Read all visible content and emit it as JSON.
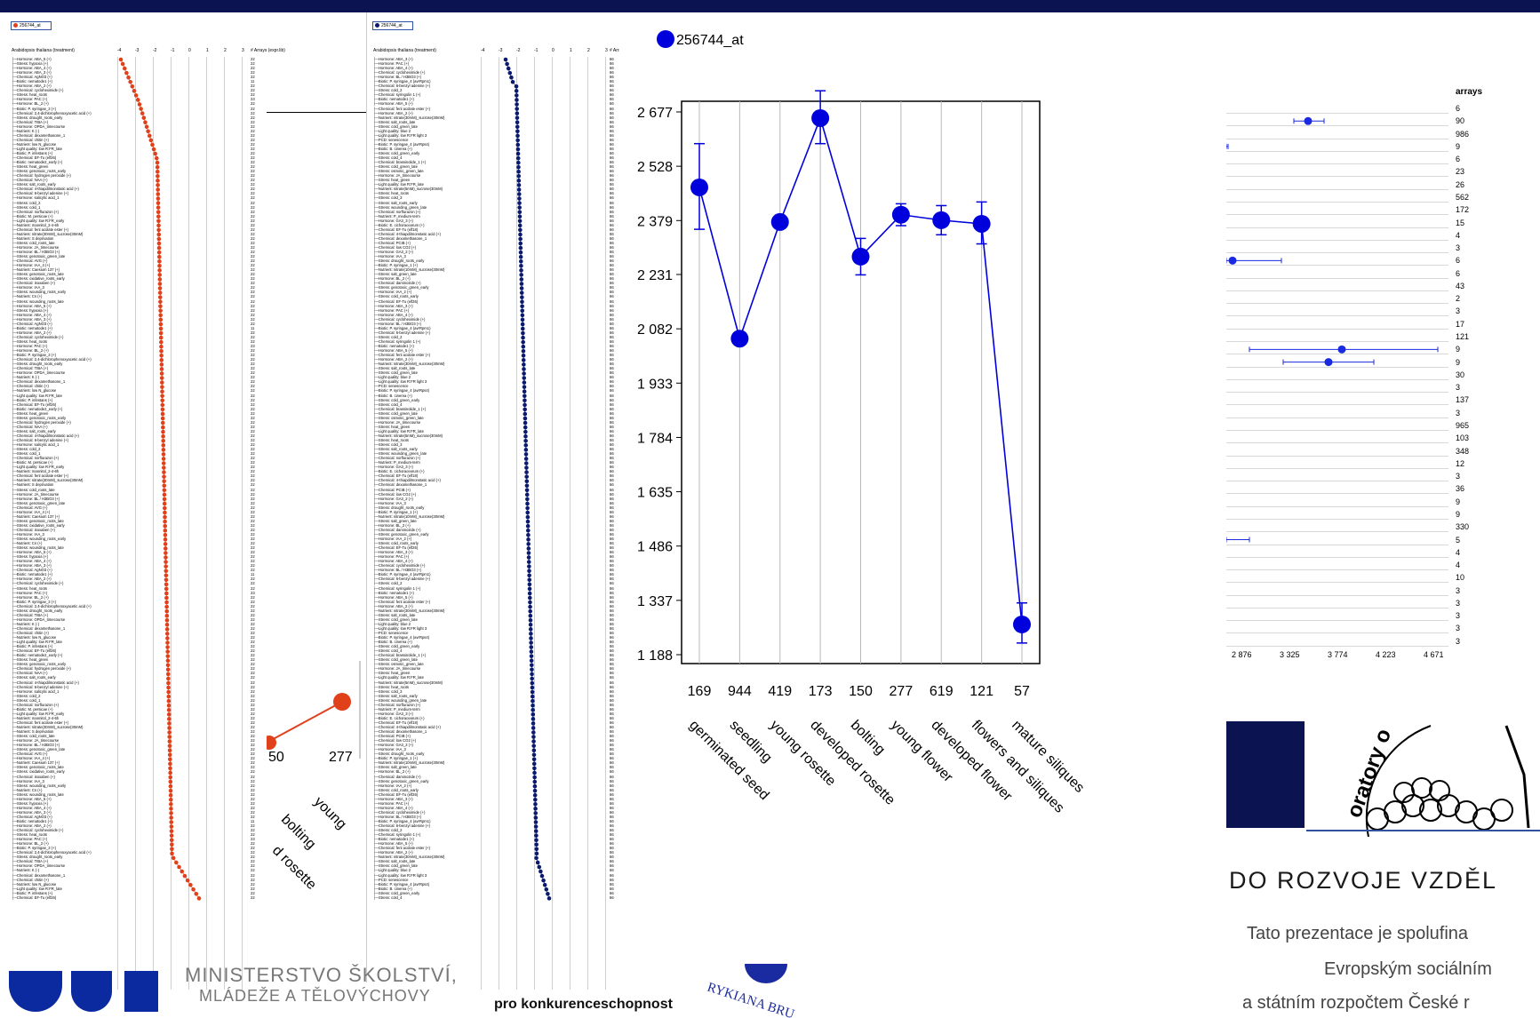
{
  "colors": {
    "top_bar": "#0b1450",
    "left_series": "#e0401a",
    "mid_series": "#0a1a6e",
    "main_series": "#0000dd",
    "logo_navy": "#0b1450"
  },
  "left_panel": {
    "legend": "256744_at",
    "title": "Arabidopsis thaliana (treatment)",
    "scale_header": "# Arrays (expr.lib)",
    "row_labels": [
      "Hormone: ABA_5 (+)",
      "Stress: hypoxia (+)",
      "Hormone: ABA_4 (+)",
      "Hormone: ABA_3 (+)",
      "Chemical: AgNO3 (+)",
      "Biotic: nematode1 (+)",
      "Hormone: ABA_2 (+)",
      "Chemical: cycloheximide (+)",
      "Stress: heat_roots",
      "Hormone: PAC (+)",
      "Hormone: BL_2 (+)",
      "Biotic: P. syringae_3 (+)",
      "Chemical: 2,4-dichlorophenoxyacetic acid (+)",
      "Stress: drought_roots_early",
      "Chemical: TIBA (+)",
      "Hormone: OPDA_timecourse",
      "Nutrient: K (-)",
      "Chemical: dexamethasone_1",
      "Chemical: chitin (+)",
      "Nutrient: low N_glucose",
      "Light quality: low R:FR_late",
      "Biotic: P. infestans (+)",
      "Chemical: EF-Tu (elf26)",
      "Biotic: nematode2_early (+)",
      "Stress: heat_green",
      "Stress: genotoxic_roots_early",
      "Chemical: hydrogen peroxide (+)",
      "Chemical: NAA (+)",
      "Stress: salt_roots_early",
      "Chemical: 4-thiapdilmonstatic acid (+)",
      "Chemical: 6-benzyl adenine (+)",
      "Hormone: salicylic acid_1",
      "Stress: cold_2",
      "Stress: cold_1",
      "Chemical: norflurazon (+)",
      "Biotic: M. persicae (+)",
      "Light quality: low R:FR_early",
      "Nutrient: mannitol_2-4-6h",
      "Chemical: fenl acolate ester (+)",
      "Nutrient: nitrate(30mM)_sucrose(30mM)",
      "Nutrient: S deprivation",
      "Stress: cold_roots_late",
      "Hormone: JA_timecourse",
      "Hormone: BL / H3BO3 (+)",
      "Stress: genotoxic_green_late",
      "Chemical: AVG (+)",
      "Hormone: IAA_4 (+)",
      "Nutrient: Caesium 137 (+)",
      "Stress: genotoxic_roots_late",
      "Stress: oxidative_roots_early",
      "Chemical: isoxaben (+)",
      "Hormone: IAA_3",
      "Stress: wounding_roots_early",
      "Nutrient: Cs (+)",
      "Stress: wounding_roots_late"
    ],
    "row_values": [
      "22",
      "22",
      "22",
      "22",
      "22",
      "11",
      "22",
      "22",
      "22",
      "23",
      "22",
      "22",
      "22",
      "22",
      "22",
      "22",
      "22",
      "22",
      "22",
      "22",
      "22",
      "22",
      "22",
      "22",
      "22",
      "22",
      "22",
      "22",
      "22",
      "22",
      "22",
      "22",
      "22",
      "22",
      "22",
      "22",
      "22",
      "22",
      "22",
      "22",
      "22",
      "22",
      "22",
      "22",
      "22",
      "22",
      "22",
      "22",
      "22",
      "22",
      "22",
      "22",
      "22",
      "22",
      "22"
    ],
    "scale_ticks": [
      "-4",
      "-3",
      "-2",
      "-1",
      "0",
      "1",
      "2",
      "3"
    ],
    "bg_labels": [
      "50",
      "277"
    ],
    "bg_xlabels": [
      "young",
      "bolting",
      "d rosette"
    ]
  },
  "mid_panel": {
    "legend": "256744_at",
    "title": "Arabidopsis thaliana (treatment)",
    "scale_header": "# Arrays (expr.lib)",
    "row_labels": [
      "Hormone: ABA_3 (+)",
      "Hormone: PAC (+)",
      "Hormone: ABA_4 (+)",
      "Chemical: cycloheximide (+)",
      "Hormone: BL / H3BO3 (+)",
      "Biotic: P. syringae_4 (avrRpm1)",
      "Chemical: 6-benzyl adenine (+)",
      "Stress: cold_2",
      "Chemical: syringolin 1 (+)",
      "Biotic: nematode1 (+)",
      "Hormone: ABA_5 (+)",
      "Chemical: fenl acolate ester (+)",
      "Hormone: ABA_2 (+)",
      "Nutrient: nitrate(30mM)_sucrose(30mM)",
      "Stress: salt_roots_late",
      "Stress: cold_green_late",
      "Light quality: blue 2",
      "Light quality: low R:FR light 3",
      "PCD: senescence",
      "Biotic: P. syringae_4 (avrRps4)",
      "Biotic: B. cinerea (+)",
      "Stress: cold_green_early",
      "Stress: cold_4",
      "Chemical: brassinolide_1 (+)",
      "Stress: cold_green_late",
      "Stress: osmotic_green_late",
      "Hormone: JA_timecourse",
      "Stress: heat_green",
      "Light quality: low R:FR_late",
      "Nutrient: nitrate(5mM)_sucrose(30mM)",
      "Stress: heat_roots",
      "Stress: cold_3",
      "Stress: salt_roots_early",
      "Stress: wounding_green_late",
      "Chemical: norflurazon (+)",
      "Nutrient: P_medium-term",
      "Hormone: GA3_3 (+)",
      "Biotic: E. cichoracearum (+)",
      "Chemical: EF-Tu (elf18)",
      "Chemical: 4-thiapdilmonstatic acid (+)",
      "Chemical: dexamethasone_1",
      "Chemical: PCIB (+)",
      "Chemical: low CO2 (+)",
      "Hormone: GA3_2 (+)",
      "Hormone: IAA_3",
      "Stress: drought_roots_early",
      "Biotic: P. syringae_1 (+)",
      "Nutrient: nitrate(10mM)_sucrose(30mM)",
      "Stress: salt_green_late",
      "Hormone: BL_2 (+)",
      "Chemical: daminozide (+)",
      "Stress: genotoxic_green_early",
      "Hormone: IAA_2 (+)",
      "Stress: cold_roots_early",
      "Chemical: EF-Tu (elf26)"
    ],
    "row_values": [
      "66",
      "66",
      "66",
      "66",
      "66",
      "66",
      "66",
      "66",
      "66",
      "66",
      "66",
      "66",
      "66",
      "66",
      "66",
      "66",
      "66",
      "66",
      "66",
      "66",
      "66",
      "66",
      "66",
      "66",
      "66",
      "66",
      "66",
      "66",
      "66",
      "66",
      "66",
      "66",
      "66",
      "66",
      "66",
      "66",
      "66",
      "66",
      "66",
      "66",
      "66",
      "66",
      "66",
      "66",
      "66",
      "66",
      "66",
      "66",
      "66",
      "66",
      "66",
      "66",
      "66",
      "66",
      "66"
    ],
    "scale_ticks": [
      "-4",
      "-3",
      "-2",
      "-1",
      "0",
      "1",
      "2",
      "3"
    ]
  },
  "main_chart": {
    "legend_label": "256744_at",
    "y_ticks": [
      "2 677",
      "2 528",
      "2 379",
      "2 231",
      "2 082",
      "1 933",
      "1 784",
      "1 635",
      "1 486",
      "1 337",
      "1 188"
    ],
    "counts": [
      "169",
      "944",
      "419",
      "173",
      "150",
      "277",
      "619",
      "121",
      "57"
    ],
    "stages": [
      "germinated seed",
      "seedling",
      "young rosette",
      "developed rosette",
      "bolting",
      "young flower",
      "developed flower",
      "flowers and siliques",
      "mature siliques"
    ]
  },
  "chart_data": {
    "type": "line",
    "title": "",
    "xlabel": "",
    "ylabel": "",
    "series": [
      {
        "name": "256744_at",
        "values": [
          2470,
          2055,
          2375,
          2660,
          2280,
          2395,
          2380,
          2370,
          1271
        ],
        "error_low": [
          2355,
          2055,
          2375,
          2590,
          2230,
          2365,
          2340,
          2315,
          1220
        ],
        "error_high": [
          2590,
          2055,
          2375,
          2735,
          2330,
          2425,
          2420,
          2430,
          1330
        ]
      }
    ],
    "categories": [
      "germinated seed",
      "seedling",
      "young rosette",
      "developed rosette",
      "bolting",
      "young flower",
      "developed flower",
      "flowers and siliques",
      "mature siliques"
    ],
    "ylim": [
      1188,
      2677
    ],
    "grid": true
  },
  "right_panel": {
    "header": "arrays",
    "arrays": [
      "6",
      "90",
      "986",
      "9",
      "6",
      "23",
      "26",
      "562",
      "172",
      "15",
      "4",
      "3",
      "6",
      "6",
      "43",
      "2",
      "3",
      "17",
      "121",
      "9",
      "9",
      "30",
      "3",
      "137",
      "3",
      "965",
      "103",
      "348",
      "12",
      "3",
      "36",
      "9",
      "9",
      "330",
      "5",
      "4",
      "4",
      "10",
      "3",
      "3",
      "3",
      "3",
      "3"
    ],
    "x_ticks": [
      "2 876",
      "3 325",
      "3 774",
      "4 223",
      "4 671"
    ]
  },
  "footer": {
    "heading": "DO ROZVOJE VZDĚL",
    "line1": "Tato prezentace je spolufina",
    "line2": "Evropským sociálním",
    "line3": "a státním rozpočtem České r",
    "ministry_line1": "MINISTERSTVO ŠKOLSTVÍ,",
    "ministry_line2": "MLÁDEŽE A TĚLOVÝCHOVY",
    "op_line2": "pro konkurenceschopnost",
    "logo_arc_text": "oratory o",
    "univ_text": "RYKIANA BRU"
  }
}
